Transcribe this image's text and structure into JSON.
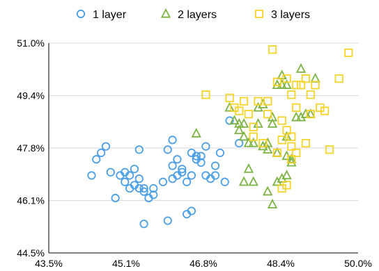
{
  "chart_data": {
    "type": "scatter",
    "title": "",
    "xlabel": "",
    "ylabel": "",
    "xlim": [
      43.5,
      50.0
    ],
    "ylim": [
      44.5,
      51.0
    ],
    "x_ticks": [
      "43.5%",
      "45.1%",
      "46.8%",
      "48.4%",
      "50.0%"
    ],
    "y_ticks": [
      "51.0%",
      "49.4%",
      "47.8%",
      "46.1%",
      "44.5%"
    ],
    "grid": "horizontal",
    "legend_position": "top",
    "series": [
      {
        "name": "1 layer",
        "marker": "circle",
        "color": "#4a9fe8",
        "x": [
          44.4,
          44.5,
          44.6,
          44.7,
          44.8,
          45.0,
          45.1,
          45.1,
          45.2,
          45.2,
          45.3,
          45.3,
          45.4,
          45.4,
          45.5,
          45.5,
          45.6,
          45.7,
          45.7,
          45.9,
          46.0,
          46.1,
          46.1,
          46.2,
          46.3,
          46.3,
          46.4,
          46.5,
          46.5,
          46.6,
          46.6,
          46.7,
          46.7,
          46.8,
          46.8,
          46.9,
          47.0,
          47.0,
          47.1,
          47.2,
          47.3,
          47.5,
          45.4,
          46.1,
          46.2,
          46.0,
          46.4,
          46.5,
          44.9,
          45.5
        ],
        "y": [
          46.9,
          47.4,
          47.6,
          47.8,
          47.0,
          46.9,
          47.0,
          46.7,
          46.5,
          46.9,
          47.1,
          46.6,
          47.7,
          46.5,
          46.4,
          46.5,
          46.2,
          46.5,
          46.3,
          46.7,
          47.7,
          46.8,
          48.0,
          46.9,
          47.0,
          47.1,
          46.7,
          46.9,
          47.6,
          47.4,
          47.5,
          47.3,
          47.5,
          46.9,
          47.8,
          46.8,
          46.9,
          47.2,
          47.6,
          46.7,
          48.6,
          47.9,
          46.8,
          47.2,
          47.4,
          45.5,
          45.7,
          45.8,
          46.2,
          45.4
        ]
      },
      {
        "name": "2 layers",
        "marker": "triangle",
        "color": "#7cb342",
        "x": [
          46.6,
          47.3,
          47.4,
          47.5,
          47.6,
          47.7,
          47.8,
          47.9,
          48.0,
          48.1,
          48.2,
          48.3,
          48.4,
          48.5,
          48.6,
          48.7,
          47.5,
          47.6,
          47.9,
          48.0,
          48.1,
          48.2,
          48.3,
          48.5,
          48.6,
          48.8,
          48.9,
          47.6,
          47.8,
          48.4,
          48.1,
          48.5,
          48.8,
          49.0,
          48.4,
          48.5,
          49.1,
          48.3,
          48.2,
          47.7
        ],
        "y": [
          48.2,
          49.0,
          48.6,
          48.3,
          48.1,
          47.9,
          47.9,
          49.0,
          49.1,
          47.7,
          48.7,
          47.6,
          49.7,
          47.5,
          47.3,
          48.7,
          48.5,
          48.5,
          48.5,
          47.8,
          47.9,
          48.5,
          49.7,
          48.1,
          47.4,
          48.7,
          48.8,
          46.7,
          46.7,
          50.0,
          46.4,
          49.7,
          50.2,
          48.8,
          46.8,
          46.9,
          49.9,
          46.7,
          46.0,
          47.1
        ]
      },
      {
        "name": "3 layers",
        "marker": "square",
        "color": "#f5d327",
        "x": [
          46.8,
          47.3,
          47.4,
          47.5,
          47.6,
          47.7,
          47.8,
          47.9,
          48.0,
          48.1,
          48.2,
          48.3,
          48.4,
          48.5,
          48.6,
          48.7,
          48.8,
          48.9,
          49.0,
          49.1,
          49.3,
          49.4,
          49.6,
          49.8,
          48.3,
          48.6,
          48.4,
          48.5,
          48.7,
          48.7,
          48.9,
          49.0,
          49.2,
          47.8,
          48.1,
          48.4,
          48.5,
          48.6,
          48.6
        ],
        "y": [
          49.4,
          49.3,
          49.0,
          48.9,
          49.2,
          48.8,
          48.4,
          49.2,
          47.9,
          48.8,
          50.8,
          49.8,
          48.6,
          48.3,
          47.4,
          49.0,
          49.7,
          49.9,
          49.4,
          49.7,
          48.9,
          47.7,
          49.9,
          50.7,
          47.6,
          47.8,
          46.5,
          46.6,
          47.6,
          49.7,
          47.9,
          48.8,
          49.0,
          48.1,
          49.2,
          48.0,
          49.9,
          48.1,
          49.4
        ]
      }
    ]
  }
}
